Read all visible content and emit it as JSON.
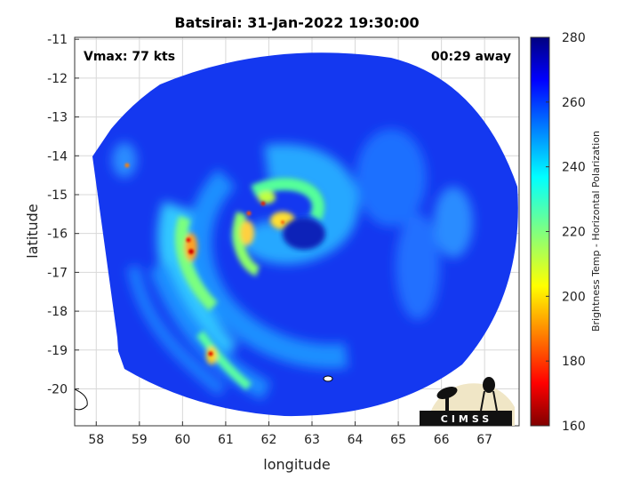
{
  "chart_data": {
    "type": "heatmap",
    "title": "Batsirai: 31-Jan-2022 19:30:00",
    "xlabel": "longitude",
    "ylabel": "latitude",
    "xlim": [
      57.5,
      67.8
    ],
    "ylim": [
      -20.95,
      -10.95
    ],
    "xticks": [
      58,
      59,
      60,
      61,
      62,
      63,
      64,
      65,
      66,
      67
    ],
    "yticks": [
      -11,
      -12,
      -13,
      -14,
      -15,
      -16,
      -17,
      -18,
      -19,
      -20
    ],
    "grid": true,
    "annotations": {
      "vmax": "Vmax: 77 kts",
      "time_offset": "00:29 away"
    },
    "storm_center": {
      "lon": 62.8,
      "lat": -16.1
    },
    "colorbar": {
      "label": "Brightness Temp - Horizontal Polarization",
      "range": [
        160,
        280
      ],
      "ticks": [
        160,
        180,
        200,
        220,
        240,
        260,
        280
      ],
      "colormap": "jet"
    }
  },
  "logo": {
    "text": "CIMSS"
  }
}
